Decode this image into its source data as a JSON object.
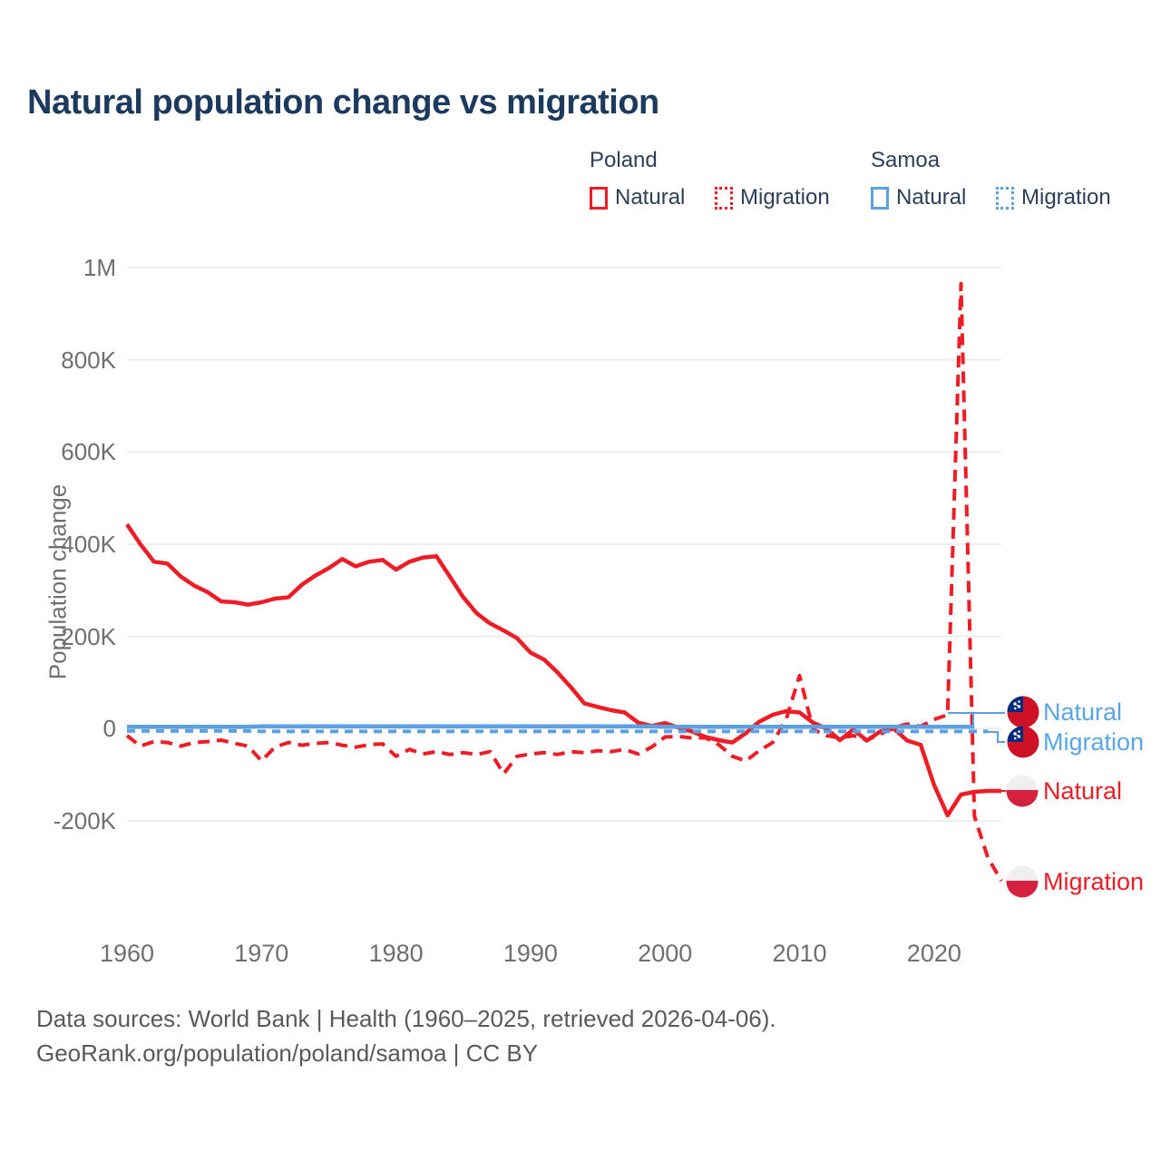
{
  "title": "Natural population change vs migration",
  "legend": {
    "groups": [
      {
        "label": "Poland",
        "items": [
          {
            "label": "Natural",
            "style": "solid",
            "color": "#ee1c25"
          },
          {
            "label": "Migration",
            "style": "dotted",
            "color": "#ee1c25"
          }
        ]
      },
      {
        "label": "Samoa",
        "items": [
          {
            "label": "Natural",
            "style": "solid",
            "color": "#5da0e2"
          },
          {
            "label": "Migration",
            "style": "dotted",
            "color": "#5da0e2"
          }
        ]
      }
    ]
  },
  "y_axis": {
    "label": "Population change",
    "ticks": [
      {
        "label": "1M",
        "value": 1000
      },
      {
        "label": "800K",
        "value": 800
      },
      {
        "label": "600K",
        "value": 600
      },
      {
        "label": "400K",
        "value": 400
      },
      {
        "label": "200K",
        "value": 200
      },
      {
        "label": "0",
        "value": 0
      },
      {
        "label": "-200K",
        "value": -200
      }
    ]
  },
  "x_axis": {
    "ticks": [
      {
        "label": "1960",
        "value": 1960
      },
      {
        "label": "1970",
        "value": 1970
      },
      {
        "label": "1980",
        "value": 1980
      },
      {
        "label": "1990",
        "value": 1990
      },
      {
        "label": "2000",
        "value": 2000
      },
      {
        "label": "2010",
        "value": 2010
      },
      {
        "label": "2020",
        "value": 2020
      }
    ]
  },
  "annotations": [
    {
      "country": "Samoa",
      "label": "Natural",
      "color": "#58a6e8"
    },
    {
      "country": "Samoa",
      "label": "Migration",
      "color": "#58a6e8"
    },
    {
      "country": "Poland",
      "label": "Natural",
      "color": "#ee1c25"
    },
    {
      "country": "Poland",
      "label": "Migration",
      "color": "#ee1c25"
    }
  ],
  "footer": {
    "line1": "Data sources: World Bank | Health (1960–2025, retrieved 2026-04-06).",
    "line2": "GeoRank.org/population/poland/samoa | CC BY"
  },
  "colors": {
    "poland": "#ee1c25",
    "samoa": "#5da0e2",
    "title": "#1c3a5e",
    "axis_text": "#6f6f6f",
    "grid": "#e9e9e9",
    "footer_text": "#58595b",
    "samoa_flag_blue": "#002B7F",
    "samoa_flag_red": "#CE1126",
    "poland_flag_red": "#d4213d"
  },
  "chart_data": {
    "type": "line",
    "title": "Natural population change vs migration",
    "ylabel": "Population change",
    "units": "thousands of people per year",
    "ylim": [
      -350,
      1000
    ],
    "grid": "horizontal only",
    "legend_position": "top-right",
    "x": [
      1960,
      1961,
      1962,
      1963,
      1964,
      1965,
      1966,
      1967,
      1968,
      1969,
      1970,
      1971,
      1972,
      1973,
      1974,
      1975,
      1976,
      1977,
      1978,
      1979,
      1980,
      1981,
      1982,
      1983,
      1984,
      1985,
      1986,
      1987,
      1988,
      1989,
      1990,
      1991,
      1992,
      1993,
      1994,
      1995,
      1996,
      1997,
      1998,
      1999,
      2000,
      2001,
      2002,
      2003,
      2004,
      2005,
      2006,
      2007,
      2008,
      2009,
      2010,
      2011,
      2012,
      2013,
      2014,
      2015,
      2016,
      2017,
      2018,
      2019,
      2020,
      2021,
      2022,
      2023,
      2024,
      2025
    ],
    "series": [
      {
        "name": "Poland Natural",
        "color": "#ee1c25",
        "dash": "none",
        "values": [
          443,
          400,
          362,
          358,
          330,
          310,
          296,
          276,
          274,
          269,
          274,
          282,
          285,
          312,
          332,
          348,
          368,
          352,
          362,
          366,
          345,
          362,
          371,
          374,
          330,
          285,
          250,
          228,
          213,
          196,
          165,
          150,
          122,
          90,
          55,
          47,
          40,
          35,
          13,
          6,
          12,
          2,
          -6,
          -18,
          -25,
          -30,
          -10,
          15,
          30,
          38,
          35,
          13,
          0,
          -25,
          -2,
          -26,
          -6,
          0,
          -26,
          -35,
          -122,
          -188,
          -143,
          -137,
          -135,
          -135
        ]
      },
      {
        "name": "Poland Migration",
        "color": "#ee1c25",
        "dash": "13 8",
        "values": [
          -15,
          -38,
          -28,
          -30,
          -38,
          -30,
          -28,
          -25,
          -32,
          -38,
          -70,
          -40,
          -30,
          -36,
          -32,
          -30,
          -36,
          -40,
          -35,
          -33,
          -60,
          -45,
          -55,
          -50,
          -56,
          -52,
          -56,
          -50,
          -98,
          -60,
          -55,
          -52,
          -56,
          -50,
          -52,
          -48,
          -50,
          -45,
          -55,
          -40,
          -18,
          -17,
          -20,
          -20,
          -35,
          -60,
          -70,
          -48,
          -30,
          20,
          115,
          -2,
          -15,
          -20,
          -15,
          -25,
          -12,
          2,
          10,
          5,
          20,
          30,
          965,
          -190,
          -280,
          -330
        ]
      },
      {
        "name": "Samoa Natural",
        "color": "#5da0e2",
        "dash": "none",
        "values": [
          4,
          4,
          4,
          4,
          4,
          4,
          4,
          4,
          4,
          4,
          5,
          5,
          5,
          5,
          5,
          5,
          5,
          5,
          5,
          5,
          5,
          5,
          5,
          5,
          5,
          5,
          5,
          5,
          5,
          5,
          5,
          5,
          5,
          5,
          5,
          5,
          5,
          5,
          5,
          5,
          4,
          4,
          4,
          4,
          4,
          4,
          4,
          4,
          4,
          4,
          4,
          4,
          4,
          4,
          4,
          4,
          4,
          4,
          4,
          4,
          4,
          4,
          4,
          4,
          null,
          null
        ]
      },
      {
        "name": "Samoa Migration",
        "color": "#5da0e2",
        "dash": "9 7",
        "values": [
          -5,
          -5,
          -5,
          -5,
          -5,
          -5,
          -5,
          -5,
          -5,
          -5,
          -6,
          -6,
          -6,
          -6,
          -6,
          -6,
          -6,
          -6,
          -6,
          -6,
          -6,
          -6,
          -6,
          -6,
          -6,
          -6,
          -6,
          -6,
          -6,
          -6,
          -6,
          -6,
          -6,
          -6,
          -6,
          -6,
          -6,
          -6,
          -6,
          -6,
          -6,
          -6,
          -6,
          -6,
          -6,
          -6,
          -6,
          -6,
          -6,
          -6,
          -6,
          -6,
          -6,
          -6,
          -6,
          -6,
          -6,
          -6,
          -6,
          -6,
          -6,
          -6,
          -6,
          -6,
          -6,
          null
        ]
      }
    ]
  }
}
